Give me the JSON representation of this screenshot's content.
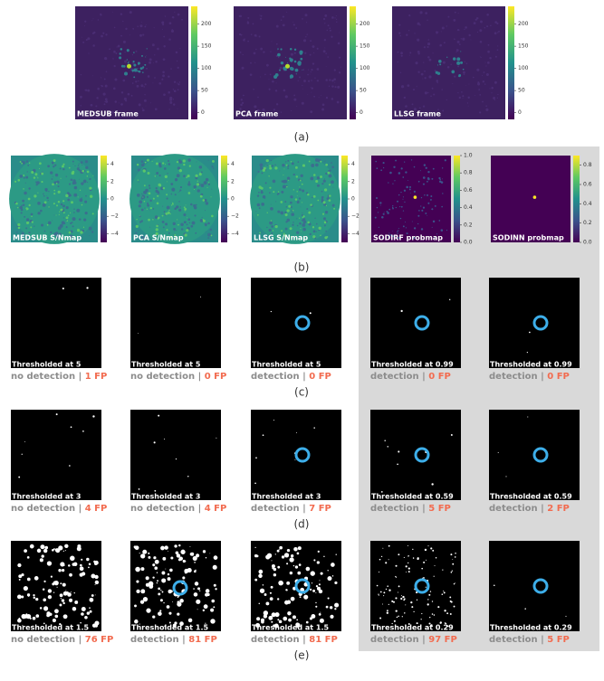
{
  "frames": [
    {
      "label": "MEDSUB frame",
      "cbar_lim": [
        -15,
        240
      ],
      "cbar_ticks": [
        0,
        50,
        100,
        150,
        200
      ]
    },
    {
      "label": "PCA frame",
      "cbar_lim": [
        -15,
        240
      ],
      "cbar_ticks": [
        0,
        50,
        100,
        150,
        200
      ]
    },
    {
      "label": "LLSG frame",
      "cbar_lim": [
        -15,
        240
      ],
      "cbar_ticks": [
        0,
        50,
        100,
        150,
        200
      ]
    }
  ],
  "frames_caption": "(a)",
  "maps": [
    {
      "label": "MEDSUB S/Nmap",
      "cbar_lim": [
        -5,
        5
      ],
      "cbar_ticks": [
        4,
        2,
        0,
        {
          "value": -2,
          "label": "−2"
        },
        {
          "value": -4,
          "label": "−4"
        }
      ]
    },
    {
      "label": "PCA S/Nmap",
      "cbar_lim": [
        -5,
        5
      ],
      "cbar_ticks": [
        4,
        2,
        0,
        {
          "value": -2,
          "label": "−2"
        },
        {
          "value": -4,
          "label": "−4"
        }
      ]
    },
    {
      "label": "LLSG S/Nmap",
      "cbar_lim": [
        -5,
        5
      ],
      "cbar_ticks": [
        4,
        2,
        0,
        {
          "value": -2,
          "label": "−2"
        },
        {
          "value": -4,
          "label": "−4"
        }
      ]
    },
    {
      "label": "SODIRF probmap",
      "cbar_lim": [
        0,
        1
      ],
      "cbar_ticks": [
        {
          "value": 0,
          "label": "0.0"
        },
        {
          "value": 0.2,
          "label": "0.2"
        },
        {
          "value": 0.4,
          "label": "0.4"
        },
        {
          "value": 0.6,
          "label": "0.6"
        },
        {
          "value": 0.8,
          "label": "0.8"
        },
        {
          "value": 1,
          "label": "1.0"
        }
      ]
    },
    {
      "label": "SODINN probmap",
      "cbar_lim": [
        0,
        0.9
      ],
      "cbar_ticks": [
        {
          "value": 0,
          "label": "0.0"
        },
        {
          "value": 0.2,
          "label": "0.2"
        },
        {
          "value": 0.4,
          "label": "0.4"
        },
        {
          "value": 0.6,
          "label": "0.6"
        },
        {
          "value": 0.8,
          "label": "0.8"
        }
      ]
    }
  ],
  "maps_caption": "(b)",
  "rows": [
    {
      "caption": "(c)",
      "panels": [
        {
          "threshold": "Thresholded at 5",
          "result": "no detection",
          "fp": "1 FP",
          "marker": false
        },
        {
          "threshold": "Thresholded at 5",
          "result": "no detection",
          "fp": "0 FP",
          "marker": false
        },
        {
          "threshold": "Thresholded at 5",
          "result": "detection",
          "fp": "0 FP",
          "marker": true
        },
        {
          "threshold": "Thresholded at 0.99",
          "result": "detection",
          "fp": "0 FP",
          "marker": true
        },
        {
          "threshold": "Thresholded at 0.99",
          "result": "detection",
          "fp": "0 FP",
          "marker": true
        }
      ]
    },
    {
      "caption": "(d)",
      "panels": [
        {
          "threshold": "Thresholded at 3",
          "result": "no detection",
          "fp": "4 FP",
          "marker": false
        },
        {
          "threshold": "Thresholded at 3",
          "result": "no detection",
          "fp": "4 FP",
          "marker": false
        },
        {
          "threshold": "Thresholded at 3",
          "result": "detection",
          "fp": "7 FP",
          "marker": true
        },
        {
          "threshold": "Thresholded at 0.59",
          "result": "detection",
          "fp": "5 FP",
          "marker": true
        },
        {
          "threshold": "Thresholded at 0.59",
          "result": "detection",
          "fp": "2 FP",
          "marker": true
        }
      ]
    },
    {
      "caption": "(e)",
      "panels": [
        {
          "threshold": "Thresholded at 1.5",
          "result": "no detection",
          "fp": "76 FP",
          "marker": false
        },
        {
          "threshold": "Thresholded at 1.5",
          "result": "detection",
          "fp": "81 FP",
          "marker": true
        },
        {
          "threshold": "Thresholded at 1.5",
          "result": "detection",
          "fp": "81 FP",
          "marker": true
        },
        {
          "threshold": "Thresholded at 0.29",
          "result": "detection",
          "fp": "97 FP",
          "marker": true
        },
        {
          "threshold": "Thresholded at 0.29",
          "result": "detection",
          "fp": "5 FP",
          "marker": true
        }
      ]
    }
  ]
}
